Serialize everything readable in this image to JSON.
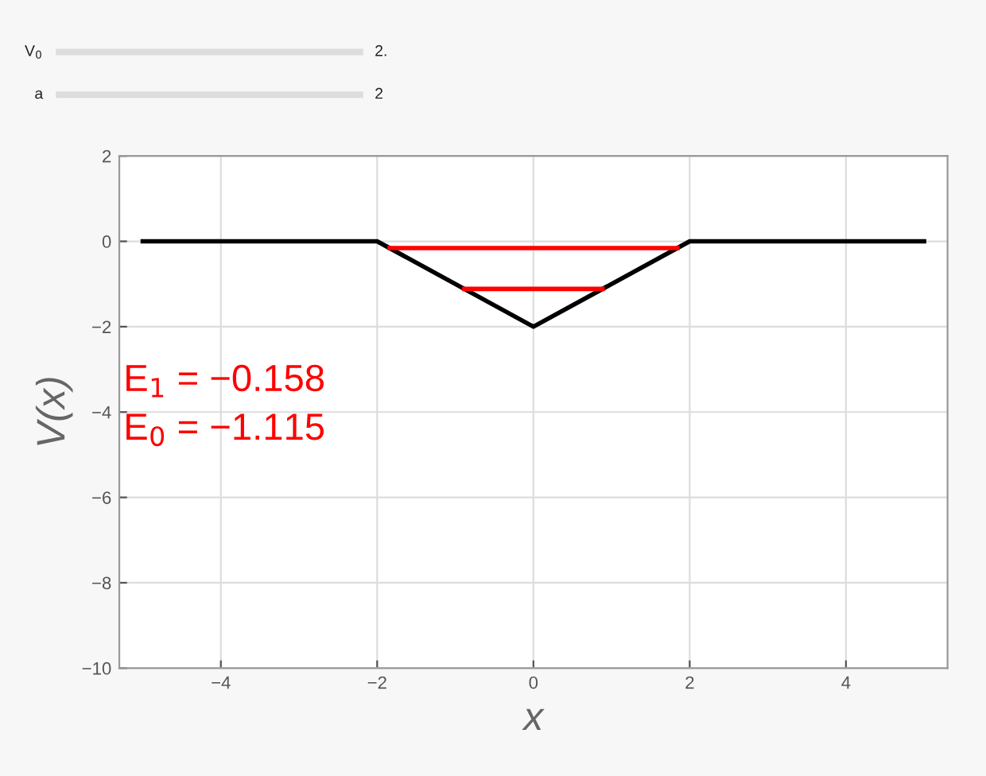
{
  "chart_data": {
    "type": "line",
    "xlabel": "x",
    "ylabel": "V(x)",
    "series": [
      {
        "color": "#000000",
        "x": [
          -5,
          -2,
          0,
          2,
          5
        ],
        "values": [
          0,
          0,
          -2,
          0,
          0
        ]
      },
      {
        "color": "#ff0000",
        "x": [
          -1.842,
          1.842
        ],
        "values": [
          -0.158,
          -0.158
        ]
      },
      {
        "color": "#ff0000",
        "x": [
          -0.885,
          0.885
        ],
        "values": [
          -1.115,
          -1.115
        ]
      }
    ],
    "annotations": [
      "E$_{1}$ = −0.158",
      "E$_{0}$ = −1.115",
      "V$_{0}$",
      "2.",
      "a",
      "2"
    ],
    "xlim": [
      -5.3,
      5.3
    ],
    "ylim": [
      -10,
      2
    ],
    "xticks": [
      -4,
      -2,
      0,
      2,
      4
    ],
    "yticks": [
      -10,
      -8,
      -6,
      -4,
      -2,
      0,
      2
    ],
    "grid": true,
    "marker": "none",
    "line_style": "solid"
  }
}
